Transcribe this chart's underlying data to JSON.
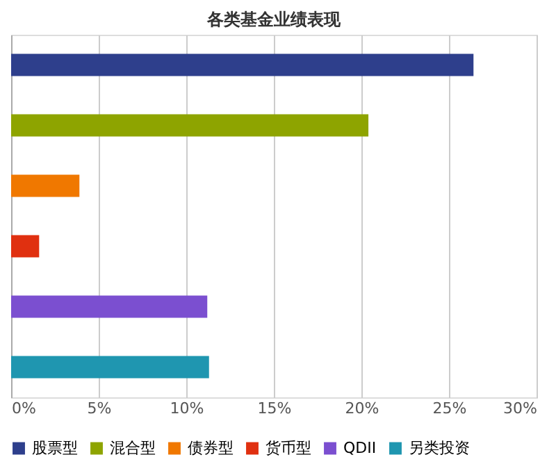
{
  "chart_data": {
    "type": "bar",
    "orientation": "horizontal",
    "title": "各类基金业绩表现",
    "categories": [
      null,
      null,
      null,
      null,
      null,
      null
    ],
    "series": [
      {
        "name": "股票型",
        "color": "#2e3f8c",
        "values": [
          26.4,
          null,
          null,
          null,
          null,
          null
        ]
      },
      {
        "name": "混合型",
        "color": "#8ea400",
        "values": [
          null,
          20.4,
          null,
          null,
          null,
          null
        ]
      },
      {
        "name": "债券型",
        "color": "#f07800",
        "values": [
          null,
          null,
          3.9,
          null,
          null,
          null
        ]
      },
      {
        "name": "货币型",
        "color": "#e03010",
        "values": [
          null,
          null,
          null,
          1.6,
          null,
          null
        ]
      },
      {
        "name": "QDII",
        "color": "#7b4fd0",
        "values": [
          null,
          null,
          null,
          null,
          11.2,
          null
        ]
      },
      {
        "name": "另类投资",
        "color": "#1f96b0",
        "values": [
          null,
          null,
          null,
          null,
          null,
          11.3
        ]
      }
    ],
    "xlim": [
      0,
      30
    ],
    "xticks": [
      {
        "value": 0,
        "label": "0%"
      },
      {
        "value": 5,
        "label": "5%"
      },
      {
        "value": 10,
        "label": "10%"
      },
      {
        "value": 15,
        "label": "15%"
      },
      {
        "value": 20,
        "label": "20%"
      },
      {
        "value": 25,
        "label": "25%"
      },
      {
        "value": 30,
        "label": "30%"
      }
    ],
    "grid": "x",
    "legend": "bottom",
    "tick_labels": "x"
  }
}
